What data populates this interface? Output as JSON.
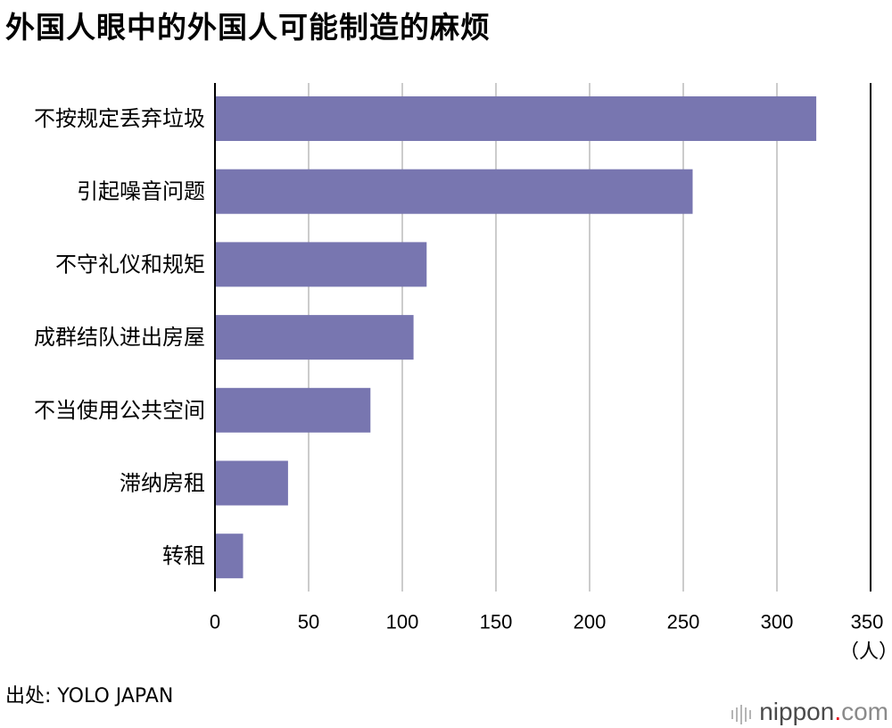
{
  "title": "外国人眼中的外国人可能制造的麻烦",
  "source_label": "出处",
  "source_value": "YOLO JAPAN",
  "brand": {
    "name": "nippon",
    "dot": ".",
    "tld": "com"
  },
  "colors": {
    "bar": "#7876b0",
    "grid": "#cccccc",
    "axis": "#000000"
  },
  "chart_data": {
    "type": "bar",
    "orientation": "horizontal",
    "title": "外国人眼中的外国人可能制造的麻烦",
    "categories": [
      "不按规定丢弃垃圾",
      "引起噪音问题",
      "不守礼仪和规矩",
      "成群结队进出房屋",
      "不当使用公共空间",
      "滞纳房租",
      "转租"
    ],
    "values": [
      321,
      255,
      113,
      106,
      83,
      39,
      15
    ],
    "xlim": [
      0,
      350
    ],
    "xticks": [
      "0",
      "50",
      "100",
      "150",
      "200",
      "250",
      "300",
      "350"
    ],
    "xunit": "（人）",
    "grid": true
  }
}
